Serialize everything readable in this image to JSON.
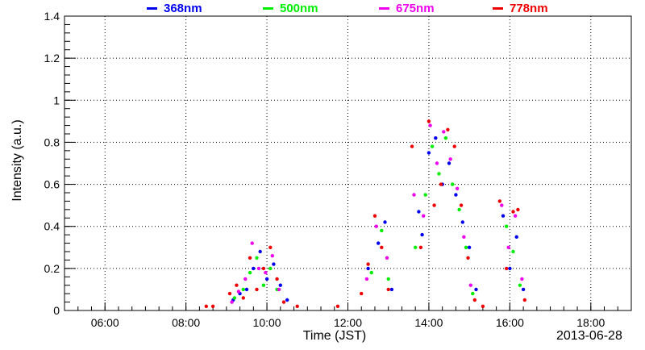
{
  "chart_data": {
    "type": "scatter",
    "title": "",
    "xlabel": "Time (JST)",
    "ylabel": "Intensity (a.u.)",
    "date_label": "2013-06-28",
    "xlim": [
      "05:00",
      "19:00"
    ],
    "ylim": [
      0,
      1.4
    ],
    "x_ticks": [
      "06:00",
      "08:00",
      "10:00",
      "12:00",
      "14:00",
      "16:00",
      "18:00"
    ],
    "y_ticks": [
      "0",
      "0.2",
      "0.4",
      "0.6",
      "0.8",
      "1",
      "1.2",
      "1.4"
    ],
    "grid": true,
    "legend_position": "top",
    "series": [
      {
        "name": "368nm",
        "color": "#0000ee",
        "points": [
          [
            "09:10",
            0.05
          ],
          [
            "09:20",
            0.08
          ],
          [
            "09:30",
            0.1
          ],
          [
            "09:40",
            0.2
          ],
          [
            "09:50",
            0.28
          ],
          [
            "10:00",
            0.15
          ],
          [
            "10:10",
            0.22
          ],
          [
            "10:20",
            0.12
          ],
          [
            "10:30",
            0.05
          ],
          [
            "12:30",
            0.2
          ],
          [
            "12:45",
            0.32
          ],
          [
            "12:55",
            0.42
          ],
          [
            "13:05",
            0.1
          ],
          [
            "13:45",
            0.47
          ],
          [
            "13:50",
            0.36
          ],
          [
            "14:00",
            0.75
          ],
          [
            "14:10",
            0.82
          ],
          [
            "14:20",
            0.6
          ],
          [
            "14:30",
            0.7
          ],
          [
            "14:40",
            0.55
          ],
          [
            "14:50",
            0.42
          ],
          [
            "15:00",
            0.3
          ],
          [
            "15:10",
            0.1
          ],
          [
            "15:50",
            0.45
          ],
          [
            "16:00",
            0.2
          ],
          [
            "16:10",
            0.35
          ],
          [
            "16:20",
            0.1
          ]
        ]
      },
      {
        "name": "500nm",
        "color": "#00ee00",
        "points": [
          [
            "09:12",
            0.06
          ],
          [
            "09:25",
            0.1
          ],
          [
            "09:35",
            0.18
          ],
          [
            "09:45",
            0.25
          ],
          [
            "09:55",
            0.12
          ],
          [
            "10:05",
            0.2
          ],
          [
            "10:15",
            0.1
          ],
          [
            "12:35",
            0.18
          ],
          [
            "12:50",
            0.38
          ],
          [
            "13:00",
            0.15
          ],
          [
            "13:40",
            0.3
          ],
          [
            "13:55",
            0.55
          ],
          [
            "14:05",
            0.78
          ],
          [
            "14:15",
            0.65
          ],
          [
            "14:25",
            0.82
          ],
          [
            "14:35",
            0.6
          ],
          [
            "14:45",
            0.48
          ],
          [
            "14:55",
            0.3
          ],
          [
            "15:05",
            0.08
          ],
          [
            "15:55",
            0.4
          ],
          [
            "16:05",
            0.28
          ],
          [
            "16:15",
            0.12
          ]
        ]
      },
      {
        "name": "675nm",
        "color": "#ee00ee",
        "points": [
          [
            "09:08",
            0.04
          ],
          [
            "09:18",
            0.09
          ],
          [
            "09:28",
            0.15
          ],
          [
            "09:38",
            0.32
          ],
          [
            "09:48",
            0.2
          ],
          [
            "09:58",
            0.18
          ],
          [
            "10:08",
            0.26
          ],
          [
            "10:18",
            0.1
          ],
          [
            "12:28",
            0.15
          ],
          [
            "12:42",
            0.4
          ],
          [
            "12:58",
            0.25
          ],
          [
            "13:38",
            0.55
          ],
          [
            "13:52",
            0.45
          ],
          [
            "14:02",
            0.88
          ],
          [
            "14:12",
            0.7
          ],
          [
            "14:22",
            0.85
          ],
          [
            "14:32",
            0.72
          ],
          [
            "14:42",
            0.58
          ],
          [
            "14:52",
            0.35
          ],
          [
            "15:02",
            0.12
          ],
          [
            "15:48",
            0.5
          ],
          [
            "15:58",
            0.3
          ],
          [
            "16:08",
            0.45
          ],
          [
            "16:18",
            0.15
          ]
        ]
      },
      {
        "name": "778nm",
        "color": "#ee0000",
        "points": [
          [
            "08:30",
            0.02
          ],
          [
            "08:40",
            0.02
          ],
          [
            "09:05",
            0.08
          ],
          [
            "09:15",
            0.12
          ],
          [
            "09:25",
            0.06
          ],
          [
            "09:35",
            0.25
          ],
          [
            "09:45",
            0.1
          ],
          [
            "09:55",
            0.2
          ],
          [
            "10:05",
            0.3
          ],
          [
            "10:15",
            0.15
          ],
          [
            "10:25",
            0.04
          ],
          [
            "10:45",
            0.02
          ],
          [
            "11:45",
            0.02
          ],
          [
            "12:20",
            0.08
          ],
          [
            "12:30",
            0.22
          ],
          [
            "12:40",
            0.45
          ],
          [
            "12:50",
            0.3
          ],
          [
            "13:00",
            0.1
          ],
          [
            "13:35",
            0.78
          ],
          [
            "13:48",
            0.3
          ],
          [
            "14:00",
            0.9
          ],
          [
            "14:08",
            0.5
          ],
          [
            "14:18",
            0.6
          ],
          [
            "14:28",
            0.86
          ],
          [
            "14:38",
            0.78
          ],
          [
            "14:48",
            0.5
          ],
          [
            "14:58",
            0.25
          ],
          [
            "15:08",
            0.05
          ],
          [
            "15:20",
            0.02
          ],
          [
            "15:45",
            0.52
          ],
          [
            "15:55",
            0.2
          ],
          [
            "16:05",
            0.47
          ],
          [
            "16:12",
            0.48
          ],
          [
            "16:22",
            0.05
          ]
        ]
      }
    ]
  }
}
